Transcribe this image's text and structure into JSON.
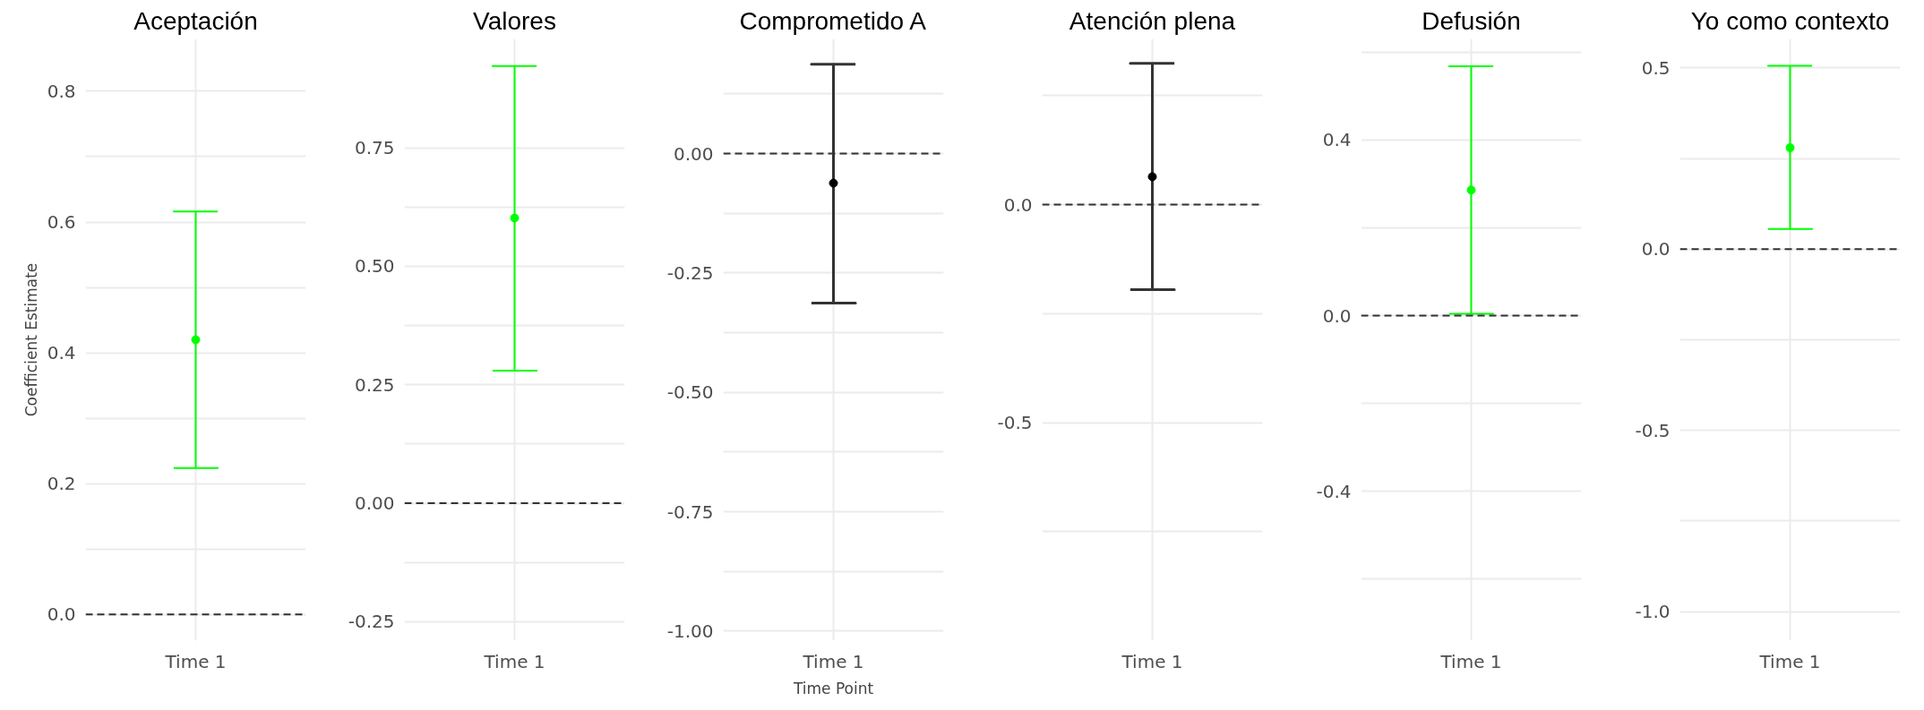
{
  "chart_data": [
    {
      "type": "scatter",
      "title": "Aceptación",
      "ylabel": "Coefficient Estimate",
      "categories": [
        "Time 1"
      ],
      "color": "#00ff00",
      "values": [
        0.42
      ],
      "errors": [
        [
          0.224,
          0.616
        ]
      ],
      "ylim": [
        -0.04,
        0.88
      ],
      "yticks": [
        {
          "value": 0.0,
          "label": "0.0"
        },
        {
          "value": 0.1,
          "label": null
        },
        {
          "value": 0.2,
          "label": "0.2"
        },
        {
          "value": 0.3,
          "label": null
        },
        {
          "value": 0.4,
          "label": "0.4"
        },
        {
          "value": 0.5,
          "label": null
        },
        {
          "value": 0.6,
          "label": "0.6"
        },
        {
          "value": 0.7,
          "label": null
        },
        {
          "value": 0.8,
          "label": "0.8"
        }
      ],
      "ref_lines": [
        {
          "axis": "y",
          "value": 0,
          "label": null,
          "color": "#333333",
          "line_style": "dashed"
        }
      ],
      "grid": true,
      "marker": "circle"
    },
    {
      "type": "scatter",
      "title": "Valores",
      "categories": [
        "Time 1"
      ],
      "color": "#00ff00",
      "values": [
        0.602
      ],
      "errors": [
        [
          0.28,
          0.923
        ]
      ],
      "ylim": [
        -0.29,
        0.98
      ],
      "yticks": [
        {
          "value": -0.25,
          "label": "-0.25"
        },
        {
          "value": -0.125,
          "label": null
        },
        {
          "value": 0,
          "label": "0.00"
        },
        {
          "value": 0.125,
          "label": null
        },
        {
          "value": 0.25,
          "label": "0.25"
        },
        {
          "value": 0.375,
          "label": null
        },
        {
          "value": 0.5,
          "label": "0.50"
        },
        {
          "value": 0.625,
          "label": null
        },
        {
          "value": 0.75,
          "label": "0.75"
        }
      ],
      "ref_lines": [
        {
          "axis": "y",
          "value": 0,
          "label": null,
          "color": "#333333",
          "line_style": "dashed"
        }
      ],
      "grid": true,
      "marker": "circle"
    },
    {
      "type": "scatter",
      "title": "Comprometido A",
      "xlabel": "Time Point",
      "categories": [
        "Time 1"
      ],
      "color": "#000000",
      "values": [
        -0.062
      ],
      "errors": [
        [
          -0.313,
          0.187
        ]
      ],
      "ylim": [
        -1.02,
        0.24
      ],
      "yticks": [
        {
          "value": -1.0,
          "label": "-1.00"
        },
        {
          "value": -0.875,
          "label": null
        },
        {
          "value": -0.75,
          "label": "-0.75"
        },
        {
          "value": -0.625,
          "label": null
        },
        {
          "value": -0.5,
          "label": "-0.50"
        },
        {
          "value": -0.375,
          "label": null
        },
        {
          "value": -0.25,
          "label": "-0.25"
        },
        {
          "value": -0.125,
          "label": null
        },
        {
          "value": 0,
          "label": "0.00"
        },
        {
          "value": 0.125,
          "label": null
        }
      ],
      "ref_lines": [
        {
          "axis": "y",
          "value": 0,
          "label": null,
          "color": "#333333",
          "line_style": "dashed"
        }
      ],
      "grid": true,
      "marker": "circle"
    },
    {
      "type": "scatter",
      "title": "Atención plena",
      "categories": [
        "Time 1"
      ],
      "color": "#000000",
      "values": [
        0.064
      ],
      "errors": [
        [
          -0.195,
          0.324
        ]
      ],
      "ylim": [
        -1.0,
        0.38
      ],
      "yticks": [
        {
          "value": -0.75,
          "label": null
        },
        {
          "value": -0.5,
          "label": "-0.5"
        },
        {
          "value": -0.25,
          "label": null
        },
        {
          "value": 0,
          "label": "0.0"
        },
        {
          "value": 0.25,
          "label": null
        }
      ],
      "ref_lines": [
        {
          "axis": "y",
          "value": 0,
          "label": null,
          "color": "#333333",
          "line_style": "dashed"
        }
      ],
      "grid": true,
      "marker": "circle"
    },
    {
      "type": "scatter",
      "title": "Defusión",
      "categories": [
        "Time 1"
      ],
      "color": "#00ff00",
      "values": [
        0.286
      ],
      "errors": [
        [
          0.004,
          0.568
        ]
      ],
      "ylim": [
        -0.74,
        0.63
      ],
      "yticks": [
        {
          "value": -0.6,
          "label": null
        },
        {
          "value": -0.4,
          "label": "-0.4"
        },
        {
          "value": -0.2,
          "label": null
        },
        {
          "value": 0,
          "label": "0.0"
        },
        {
          "value": 0.2,
          "label": null
        },
        {
          "value": 0.4,
          "label": "0.4"
        },
        {
          "value": 0.6,
          "label": null
        }
      ],
      "ref_lines": [
        {
          "axis": "y",
          "value": 0,
          "label": null,
          "color": "#333333",
          "line_style": "dashed"
        }
      ],
      "grid": true,
      "marker": "circle"
    },
    {
      "type": "scatter",
      "title": "Yo como contexto",
      "categories": [
        "Time 1"
      ],
      "color": "#00ff00",
      "values": [
        0.28
      ],
      "errors": [
        [
          0.056,
          0.506
        ]
      ],
      "ylim": [
        -1.08,
        0.58
      ],
      "yticks": [
        {
          "value": -1.0,
          "label": "-1.0"
        },
        {
          "value": -0.75,
          "label": null
        },
        {
          "value": -0.5,
          "label": "-0.5"
        },
        {
          "value": -0.25,
          "label": null
        },
        {
          "value": 0,
          "label": "0.0"
        },
        {
          "value": 0.25,
          "label": null
        },
        {
          "value": 0.5,
          "label": "0.5"
        }
      ],
      "ref_lines": [
        {
          "axis": "y",
          "value": 0,
          "label": null,
          "color": "#333333",
          "line_style": "dashed"
        }
      ],
      "grid": true,
      "marker": "circle"
    }
  ]
}
